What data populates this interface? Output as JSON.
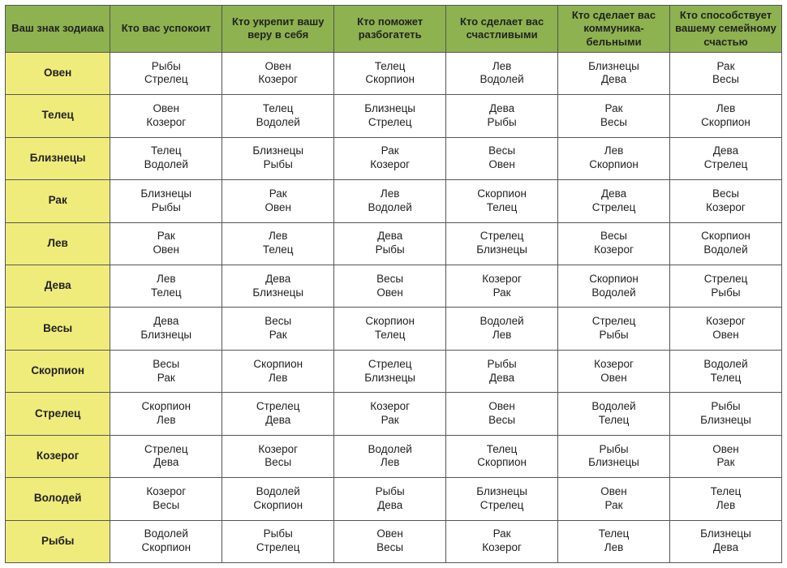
{
  "colors": {
    "header_bg": "#8db24f",
    "sign_bg": "#f0ec7c",
    "cell_bg": "#ffffff",
    "border": "#555555",
    "text": "#222222"
  },
  "columns": [
    "Ваш знак зодиака",
    "Кто вас успокоит",
    "Кто укрепит вашу веру в себя",
    "Кто поможет разбогатеть",
    "Кто сделает вас счастливыми",
    "Кто сделает вас коммуника-бельными",
    "Кто способствует вашему семейному счастью"
  ],
  "rows": [
    {
      "sign": "Овен",
      "cells": [
        [
          "Рыбы",
          "Стрелец"
        ],
        [
          "Овен",
          "Козерог"
        ],
        [
          "Телец",
          "Скорпион"
        ],
        [
          "Лев",
          "Водолей"
        ],
        [
          "Близнецы",
          "Дева"
        ],
        [
          "Рак",
          "Весы"
        ]
      ]
    },
    {
      "sign": "Телец",
      "cells": [
        [
          "Овен",
          "Козерог"
        ],
        [
          "Телец",
          "Водолей"
        ],
        [
          "Близнецы",
          "Стрелец"
        ],
        [
          "Дева",
          "Рыбы"
        ],
        [
          "Рак",
          "Весы"
        ],
        [
          "Лев",
          "Скорпион"
        ]
      ]
    },
    {
      "sign": "Близнецы",
      "cells": [
        [
          "Телец",
          "Водолей"
        ],
        [
          "Близнецы",
          "Рыбы"
        ],
        [
          "Рак",
          "Козерог"
        ],
        [
          "Весы",
          "Овен"
        ],
        [
          "Лев",
          "Скорпион"
        ],
        [
          "Дева",
          "Стрелец"
        ]
      ]
    },
    {
      "sign": "Рак",
      "cells": [
        [
          "Близнецы",
          "Рыбы"
        ],
        [
          "Рак",
          "Овен"
        ],
        [
          "Лев",
          "Водолей"
        ],
        [
          "Скорпион",
          "Телец"
        ],
        [
          "Дева",
          "Стрелец"
        ],
        [
          "Весы",
          "Козерог"
        ]
      ]
    },
    {
      "sign": "Лев",
      "cells": [
        [
          "Рак",
          "Овен"
        ],
        [
          "Лев",
          "Телец"
        ],
        [
          "Дева",
          "Рыбы"
        ],
        [
          "Стрелец",
          "Близнецы"
        ],
        [
          "Весы",
          "Козерог"
        ],
        [
          "Скорпион",
          "Водолей"
        ]
      ]
    },
    {
      "sign": "Дева",
      "cells": [
        [
          "Лев",
          "Телец"
        ],
        [
          "Дева",
          "Близнецы"
        ],
        [
          "Весы",
          "Овен"
        ],
        [
          "Козерог",
          "Рак"
        ],
        [
          "Скорпион",
          "Водолей"
        ],
        [
          "Стрелец",
          "Рыбы"
        ]
      ]
    },
    {
      "sign": "Весы",
      "cells": [
        [
          "Дева",
          "Близнецы"
        ],
        [
          "Весы",
          "Рак"
        ],
        [
          "Скорпион",
          "Телец"
        ],
        [
          "Водолей",
          "Лев"
        ],
        [
          "Стрелец",
          "Рыбы"
        ],
        [
          "Козерог",
          "Овен"
        ]
      ]
    },
    {
      "sign": "Скорпион",
      "cells": [
        [
          "Весы",
          "Рак"
        ],
        [
          "Скорпион",
          "Лев"
        ],
        [
          "Стрелец",
          "Близнецы"
        ],
        [
          "Рыбы",
          "Дева"
        ],
        [
          "Козерог",
          "Овен"
        ],
        [
          "Водолей",
          "Телец"
        ]
      ]
    },
    {
      "sign": "Стрелец",
      "cells": [
        [
          "Скорпион",
          "Лев"
        ],
        [
          "Стрелец",
          "Дева"
        ],
        [
          "Козерог",
          "Рак"
        ],
        [
          "Овен",
          "Весы"
        ],
        [
          "Водолей",
          "Телец"
        ],
        [
          "Рыбы",
          "Близнецы"
        ]
      ]
    },
    {
      "sign": "Козерог",
      "cells": [
        [
          "Стрелец",
          "Дева"
        ],
        [
          "Козерог",
          "Весы"
        ],
        [
          "Водолей",
          "Лев"
        ],
        [
          "Телец",
          "Скорпион"
        ],
        [
          "Рыбы",
          "Близнецы"
        ],
        [
          "Овен",
          "Рак"
        ]
      ]
    },
    {
      "sign": "Володей",
      "cells": [
        [
          "Козерог",
          "Весы"
        ],
        [
          "Водолей",
          "Скорпион"
        ],
        [
          "Рыбы",
          "Дева"
        ],
        [
          "Близнецы",
          "Стрелец"
        ],
        [
          "Овен",
          "Рак"
        ],
        [
          "Телец",
          "Лев"
        ]
      ]
    },
    {
      "sign": "Рыбы",
      "cells": [
        [
          "Водолей",
          "Скорпион"
        ],
        [
          "Рыбы",
          "Стрелец"
        ],
        [
          "Овен",
          "Весы"
        ],
        [
          "Рак",
          "Козерог"
        ],
        [
          "Телец",
          "Лев"
        ],
        [
          "Близнецы",
          "Дева"
        ]
      ]
    }
  ]
}
